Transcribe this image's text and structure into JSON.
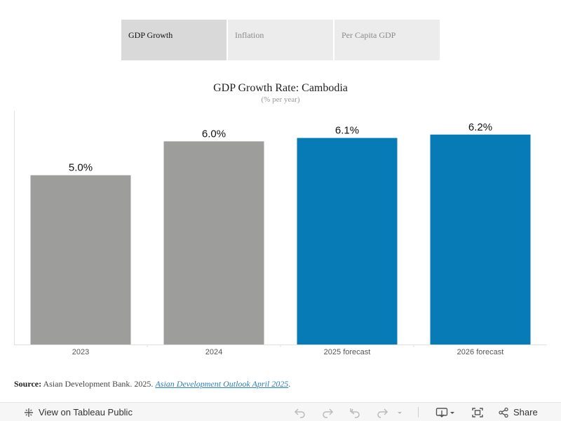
{
  "tabs": [
    {
      "label": "GDP Growth",
      "active": true
    },
    {
      "label": "Inflation",
      "active": false
    },
    {
      "label": "Per Capita GDP",
      "active": false
    }
  ],
  "chart_data": {
    "type": "bar",
    "title": "GDP Growth Rate: Cambodia",
    "subtitle": "(% per year)",
    "xlabel": "",
    "ylabel": "",
    "ylim": [
      0,
      6.9
    ],
    "grid": false,
    "categories": [
      "2023",
      "2024",
      "2025 forecast",
      "2026 forecast"
    ],
    "values": [
      5.0,
      6.0,
      6.1,
      6.2
    ],
    "data_labels": [
      "5.0%",
      "6.0%",
      "6.1%",
      "6.2%"
    ],
    "colors": [
      "#9d9e9b",
      "#9d9e9b",
      "#077bb5",
      "#077bb5"
    ]
  },
  "source": {
    "label": "Source:",
    "text": "Asian Development Bank. 2025.",
    "link_text": "Asian Development Outlook April 2025",
    "suffix": "."
  },
  "toolbar": {
    "view_label": "View on Tableau Public",
    "share_label": "Share"
  }
}
